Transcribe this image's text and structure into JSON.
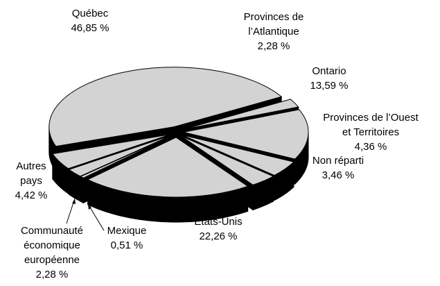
{
  "chart_data": {
    "type": "pie",
    "categories": [
      "Québec",
      "Provinces de\nl’Atlantique",
      "Ontario",
      "Provinces de l’Ouest\net Territoires",
      "Non réparti",
      "États-Unis",
      "Mexique",
      "Communauté\néconomique\neuropéenne",
      "Autres\npays"
    ],
    "values": [
      46.85,
      2.28,
      13.59,
      4.36,
      3.46,
      22.26,
      0.51,
      2.28,
      4.42
    ],
    "value_labels": [
      "46,85 %",
      "2,28 %",
      "13,59 %",
      "4,36 %",
      "3,46 %",
      "22,26 %",
      "0,51 %",
      "2,28 %",
      "4,42 %"
    ],
    "color": "#d3d3d3"
  }
}
